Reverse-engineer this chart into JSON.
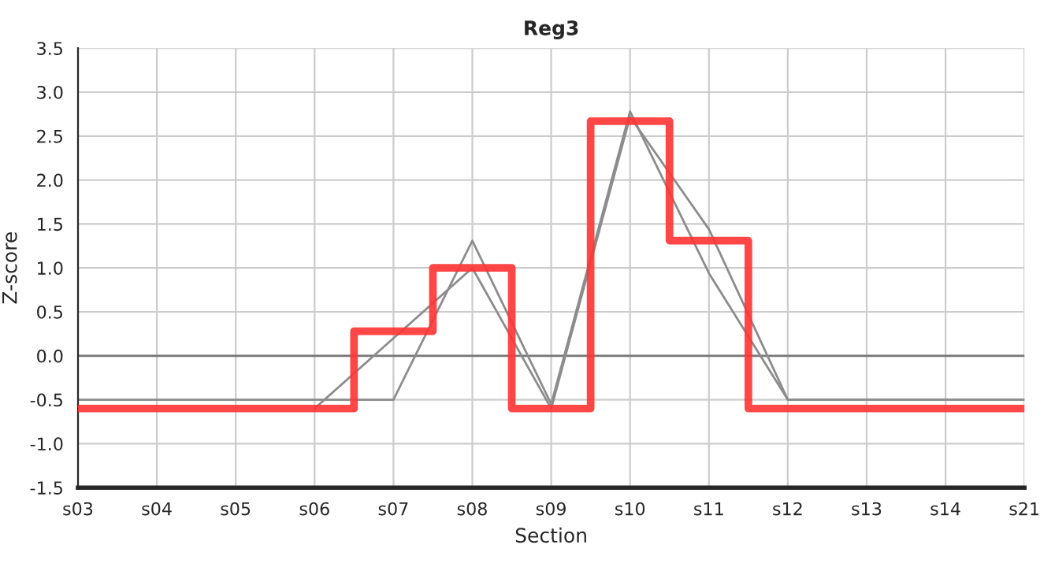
{
  "chart_data": {
    "type": "line",
    "title": "Reg3",
    "xlabel": "Section",
    "ylabel": "Z-score",
    "categories": [
      "s03",
      "s04",
      "s05",
      "s06",
      "s07",
      "s08",
      "s09",
      "s10",
      "s11",
      "s12",
      "s13",
      "s14",
      "s21"
    ],
    "series": [
      {
        "color": "#8c8c8c",
        "values": [
          -0.5,
          -0.5,
          -0.5,
          -0.5,
          -0.5,
          1.31,
          -0.55,
          2.78,
          0.94,
          -0.5,
          -0.5,
          -0.5,
          -0.5
        ]
      },
      {
        "color": "#8c8c8c",
        "values": [
          null,
          null,
          null,
          -0.6,
          0.2,
          1.0,
          -0.6,
          2.72,
          1.44,
          -0.5,
          -0.5,
          -0.5,
          -0.5
        ]
      },
      {
        "type": "step",
        "color": "#ff3333",
        "values": [
          -0.6,
          -0.6,
          -0.6,
          -0.6,
          0.28,
          1.0,
          -0.6,
          2.67,
          1.31,
          -0.6,
          -0.6,
          -0.6,
          -0.6
        ]
      }
    ],
    "ylim": [
      -1.5,
      3.5
    ],
    "yticks": [
      -1.5,
      {
        "value": -1,
        "label": "-1.0"
      },
      -0.5,
      {
        "value": 0,
        "label": "0.0"
      },
      0.5,
      {
        "value": 1,
        "label": "1.0"
      },
      1.5,
      {
        "value": 2,
        "label": "2.0"
      },
      2.5,
      {
        "value": 3,
        "label": "3.0"
      },
      3.5
    ],
    "ref_lines": [
      {
        "axis": "y",
        "value": 0,
        "color": "#777777"
      }
    ],
    "grid": true
  }
}
